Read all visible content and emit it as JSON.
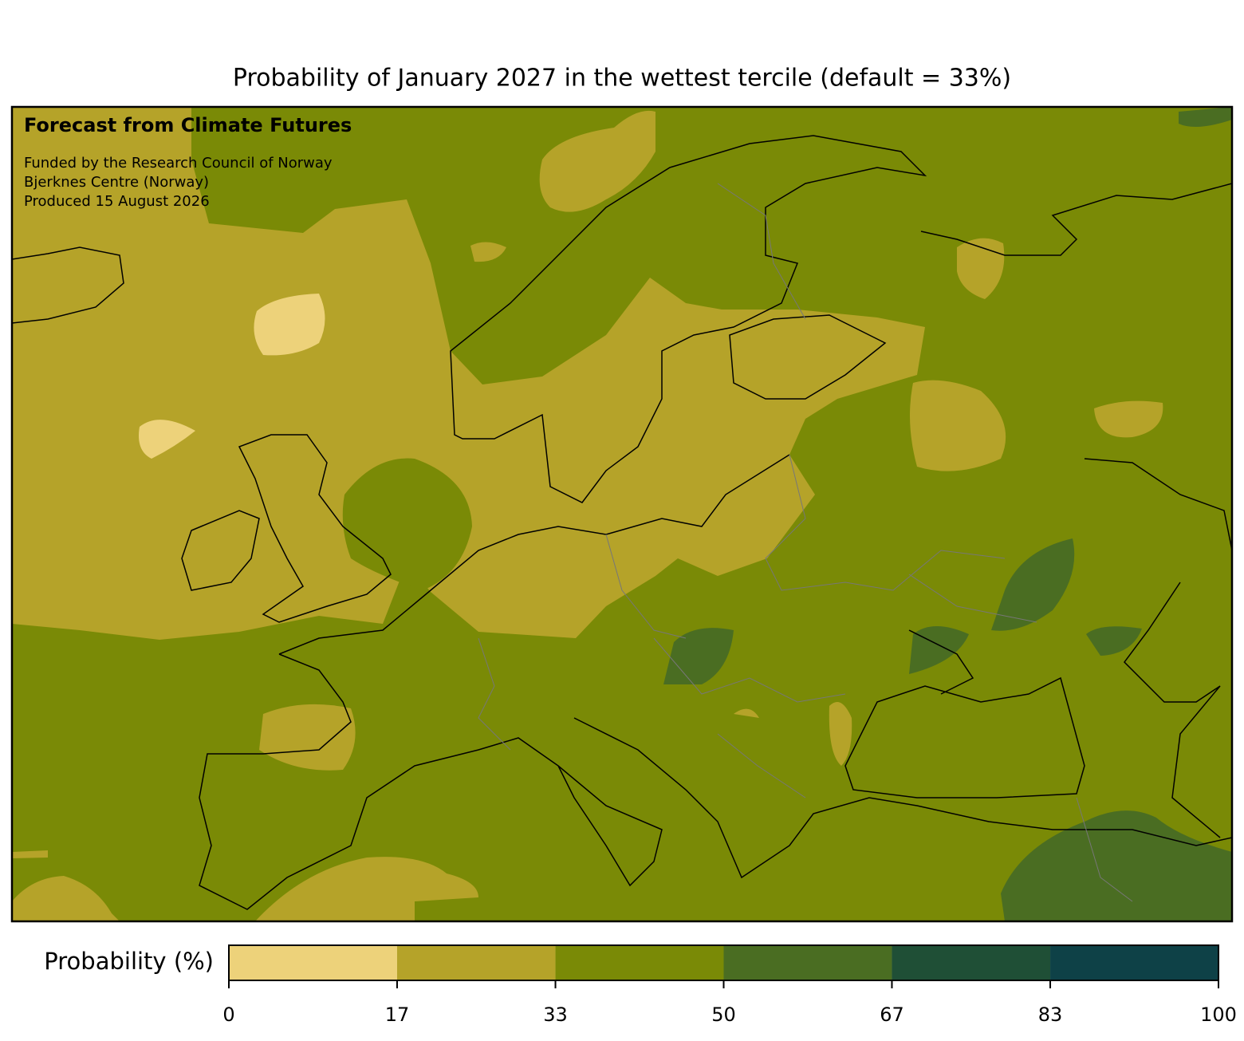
{
  "title": "Probability of January 2027 in the wettest tercile (default = 33%)",
  "annotations": {
    "heading": "Forecast from Climate Futures",
    "lines": [
      "Funded by the Research Council of Norway",
      "Bjerknes Centre (Norway)",
      "Produced 15 August 2026"
    ]
  },
  "colorbar": {
    "label": "Probability (%)",
    "limits": [
      0,
      100
    ],
    "ticks": [
      0,
      17,
      33,
      50,
      67,
      83,
      100
    ],
    "colors": [
      "#edd27a",
      "#b5a329",
      "#7a8a06",
      "#4a6d22",
      "#1f4f36",
      "#0e4147"
    ]
  }
}
